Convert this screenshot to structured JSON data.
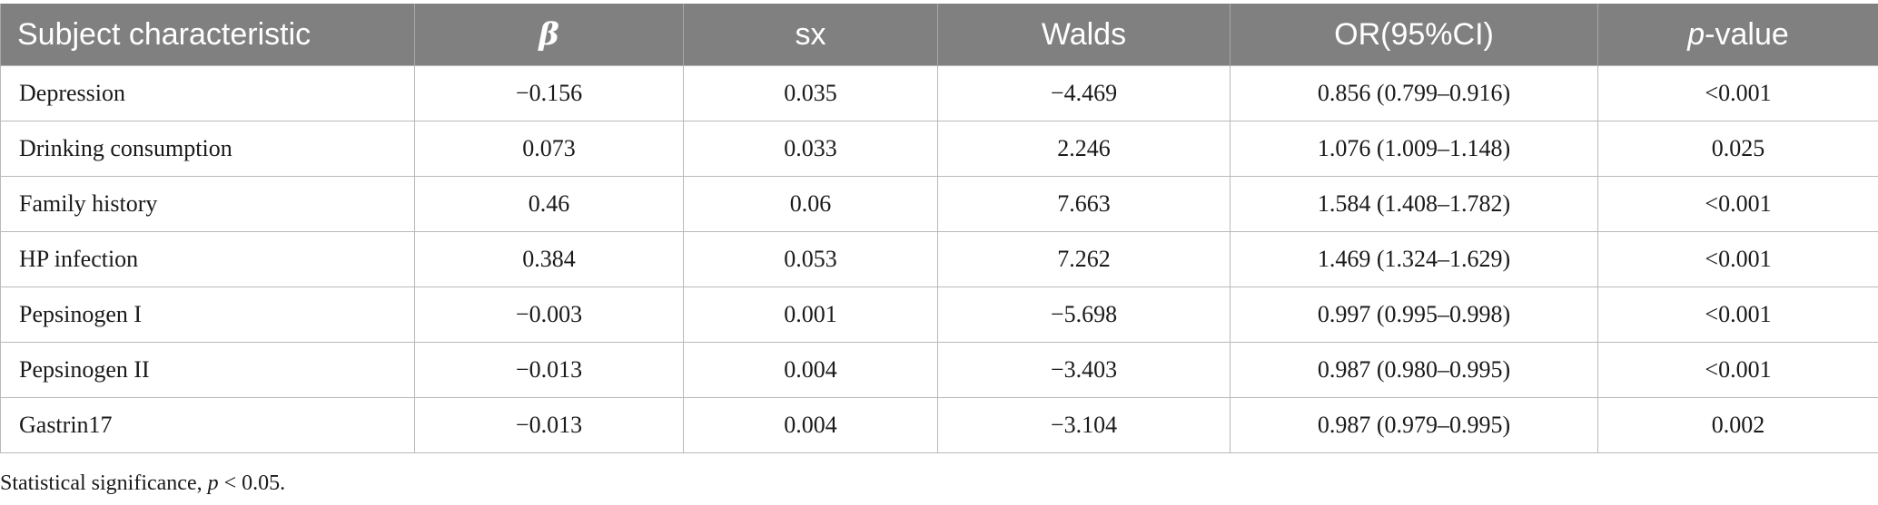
{
  "table": {
    "headers": {
      "subject": "Subject characteristic",
      "beta": "β",
      "sx": "sx",
      "walds": "Walds",
      "or": "OR(95%CI)",
      "p_italic": "p",
      "p_rest": "-value"
    },
    "rows": [
      {
        "subject": "Depression",
        "beta": "−0.156",
        "sx": "0.035",
        "walds": "−4.469",
        "or": "0.856 (0.799–0.916)",
        "p": "<0.001"
      },
      {
        "subject": "Drinking consumption",
        "beta": "0.073",
        "sx": "0.033",
        "walds": "2.246",
        "or": "1.076 (1.009–1.148)",
        "p": "0.025"
      },
      {
        "subject": "Family history",
        "beta": "0.46",
        "sx": "0.06",
        "walds": "7.663",
        "or": "1.584 (1.408–1.782)",
        "p": "<0.001"
      },
      {
        "subject": "HP infection",
        "beta": "0.384",
        "sx": "0.053",
        "walds": "7.262",
        "or": "1.469 (1.324–1.629)",
        "p": "<0.001"
      },
      {
        "subject": "Pepsinogen I",
        "beta": "−0.003",
        "sx": "0.001",
        "walds": "−5.698",
        "or": "0.997 (0.995–0.998)",
        "p": "<0.001"
      },
      {
        "subject": "Pepsinogen II",
        "beta": "−0.013",
        "sx": "0.004",
        "walds": "−3.403",
        "or": "0.987 (0.980–0.995)",
        "p": "<0.001"
      },
      {
        "subject": "Gastrin17",
        "beta": "−0.013",
        "sx": "0.004",
        "walds": "−3.104",
        "or": "0.987 (0.979–0.995)",
        "p": "0.002"
      }
    ]
  },
  "footnote": {
    "prefix": "Statistical significance, ",
    "p_italic": "p",
    "suffix": " < 0.05."
  },
  "colors": {
    "header_bg": "#808080",
    "header_text": "#ffffff",
    "grid": "#b9b9b9"
  }
}
